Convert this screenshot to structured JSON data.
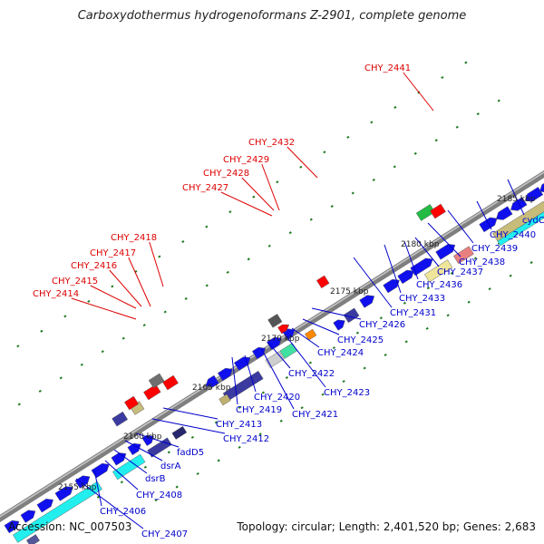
{
  "title": "Carboxydothermus hydrogenoformans Z-2901, complete genome",
  "accession": "Accession: NC_007503",
  "topology": "Topology: circular; Length: 2,401,520 bp; Genes: 2,683",
  "colors": {
    "backbone": "#7f7f7f",
    "tick": "#1f7a1f",
    "label_top": "#dd0000",
    "label_bottom": "#0000cc"
  },
  "kbp_labels": [
    "2155 kbp",
    "2160 kbp",
    "2165 kbp",
    "2170 kbp",
    "2175 kbp",
    "2180 kbp",
    "2185 kbp"
  ],
  "top_labels": [
    "CHY_2414",
    "CHY_2415",
    "CHY_2416",
    "CHY_2417",
    "CHY_2418",
    "CHY_2427",
    "CHY_2428",
    "CHY_2429",
    "CHY_2432",
    "CHY_2441"
  ],
  "bottom_labels": [
    "CHY_2406",
    "CHY_2407",
    "CHY_2408",
    "dsrB",
    "dsrA",
    "fadD5",
    "CHY_2412",
    "CHY_2413",
    "CHY_2419",
    "CHY_2420",
    "CHY_2421",
    "CHY_2422",
    "CHY_2423",
    "CHY_2424",
    "CHY_2425",
    "CHY_2426",
    "CHY_2431",
    "CHY_2433",
    "CHY_2436",
    "CHY_2437",
    "CHY_2438",
    "CHY_2439",
    "CHY_2440",
    "cydC"
  ]
}
